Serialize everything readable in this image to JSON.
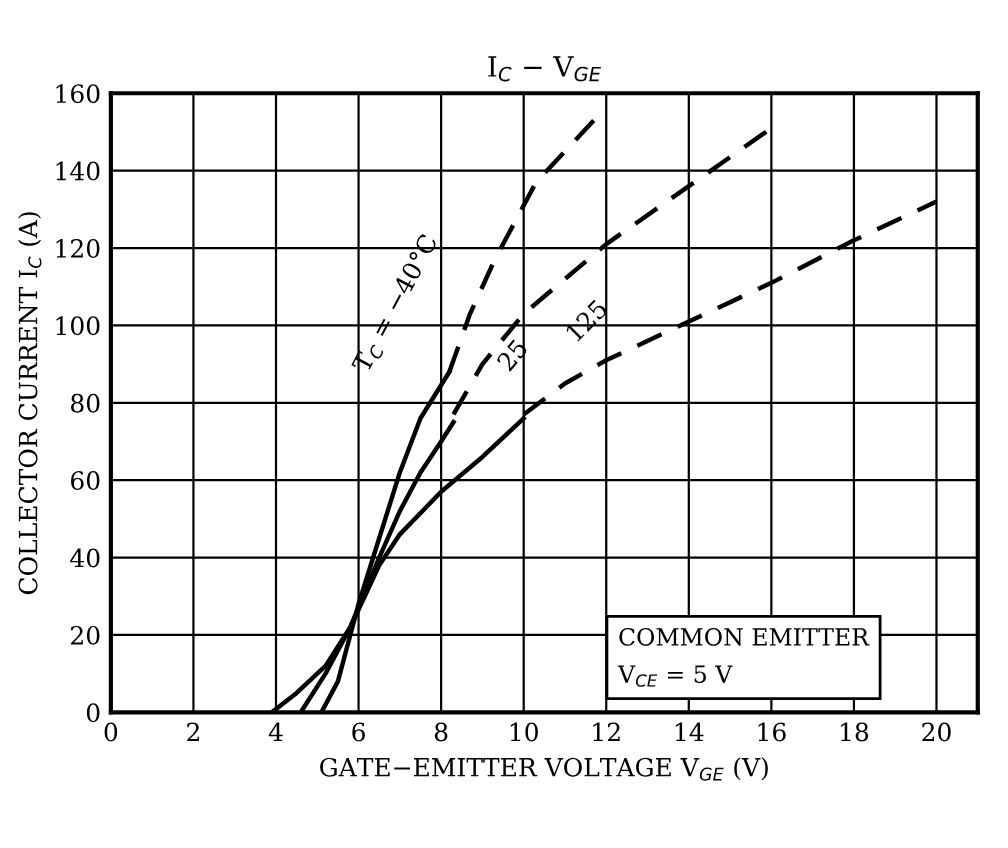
{
  "chart_data": {
    "type": "line",
    "title": "I$_{C}$ − V$_{GE}$",
    "xlabel": "GATE−EMITTER VOLTAGE V$_{GE}$ (V)",
    "ylabel": "COLLECTOR CURRENT I$_{C}$ (A)",
    "xlim": [
      0,
      21
    ],
    "ylim": [
      0,
      160
    ],
    "xticks": [
      0,
      2,
      4,
      6,
      8,
      10,
      12,
      14,
      16,
      18,
      20
    ],
    "yticks": [
      0,
      20,
      40,
      60,
      80,
      100,
      120,
      140,
      160
    ],
    "grid": true,
    "marker": "none",
    "series": [
      {
        "color": "#000000",
        "line_style": "solid",
        "x": [
          5.1,
          5.5,
          5.8,
          6,
          6.5,
          7,
          7.5,
          8.2
        ],
        "values": [
          0,
          8,
          20,
          28,
          45,
          62,
          76,
          88
        ]
      },
      {
        "color": "#000000",
        "line_style": "dashed",
        "x": [
          8.2,
          8.7,
          9.3,
          10.3,
          11.7
        ],
        "values": [
          88,
          103,
          117,
          137,
          153
        ]
      },
      {
        "color": "#000000",
        "line_style": "solid",
        "x": [
          4.6,
          5.2,
          5.8,
          6.5,
          7,
          7.5,
          8,
          8.3
        ],
        "values": [
          0,
          10,
          22,
          40,
          52,
          62,
          70,
          75
        ]
      },
      {
        "color": "#000000",
        "line_style": "dashed",
        "x": [
          8.3,
          9,
          10,
          11,
          12,
          14,
          16
        ],
        "values": [
          77,
          90,
          103,
          112,
          121,
          136,
          151
        ]
      },
      {
        "color": "#000000",
        "line_style": "solid",
        "x": [
          3.9,
          4.5,
          5.2,
          5.8,
          6.5,
          7,
          8,
          9,
          10
        ],
        "values": [
          0,
          5,
          12,
          22,
          38,
          46,
          57,
          66,
          76
        ]
      },
      {
        "color": "#000000",
        "line_style": "dashed",
        "x": [
          10,
          11,
          12,
          14,
          16,
          18,
          20
        ],
        "values": [
          77,
          85,
          91,
          101,
          111,
          122,
          132
        ]
      }
    ],
    "annotations": [
      "T$_{C}$ = −40°C",
      "25",
      "125",
      "COMMON EMITTER\nV$_{CE}$ = 5 V"
    ]
  }
}
